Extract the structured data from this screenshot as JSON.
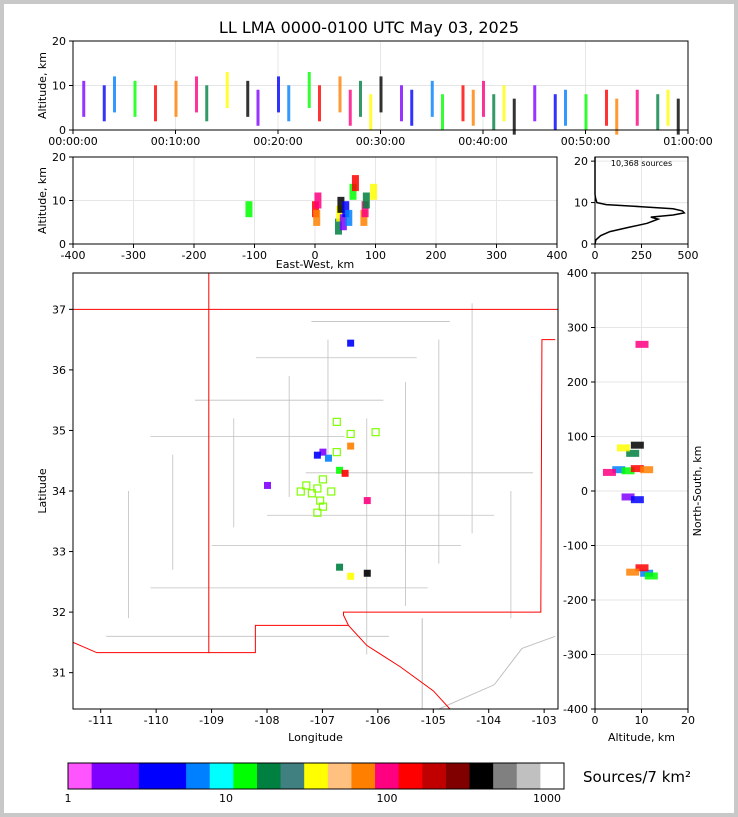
{
  "header": {
    "title": "LL LMA 0000-0100 UTC May 03, 2025"
  },
  "colorbar": {
    "label": "Sources/7 km²",
    "tick_labels": [
      "1",
      "10",
      "100",
      "1000"
    ],
    "colors": [
      "#ff55ff",
      "#8000ff",
      "#8000ff",
      "#0000ff",
      "#0000ff",
      "#0080ff",
      "#00ffff",
      "#00ff00",
      "#008040",
      "#408080",
      "#ffff00",
      "#ffc080",
      "#ff8000",
      "#ff0080",
      "#ff0000",
      "#c00000",
      "#800000",
      "#000000",
      "#808080",
      "#c0c0c0",
      "#ffffff"
    ]
  },
  "colors": {
    "state_border": "#ff0000",
    "county_border": "#c0c0c0",
    "station_marker": "#80ff00"
  },
  "chart_data": [
    {
      "type": "scatter",
      "panel": "altitude-vs-time",
      "xlabel": "",
      "ylabel": "Altitude, km",
      "x_tick_labels": [
        "00:00:00",
        "00:10:00",
        "00:20:00",
        "00:30:00",
        "00:40:00",
        "00:50:00",
        "01:00:00"
      ],
      "y_ticks": [
        0,
        10,
        20
      ],
      "xlim_minutes": [
        0,
        60
      ],
      "ylim": [
        0,
        20
      ],
      "grid": true,
      "sources": [
        [
          1,
          7
        ],
        [
          3,
          6
        ],
        [
          4,
          8
        ],
        [
          6,
          7
        ],
        [
          8,
          6
        ],
        [
          10,
          7
        ],
        [
          12,
          8
        ],
        [
          13,
          6
        ],
        [
          15,
          9
        ],
        [
          17,
          7
        ],
        [
          18,
          5
        ],
        [
          20,
          8
        ],
        [
          21,
          6
        ],
        [
          23,
          9
        ],
        [
          24,
          6
        ],
        [
          26,
          8
        ],
        [
          27,
          5
        ],
        [
          28,
          7
        ],
        [
          29,
          4
        ],
        [
          30,
          8
        ],
        [
          32,
          6
        ],
        [
          33,
          5
        ],
        [
          35,
          7
        ],
        [
          36,
          4
        ],
        [
          38,
          6
        ],
        [
          39,
          5
        ],
        [
          40,
          7
        ],
        [
          41,
          4
        ],
        [
          42,
          6
        ],
        [
          43,
          3
        ],
        [
          45,
          6
        ],
        [
          47,
          4
        ],
        [
          48,
          5
        ],
        [
          50,
          4
        ],
        [
          52,
          5
        ],
        [
          53,
          3
        ],
        [
          55,
          5
        ],
        [
          57,
          4
        ],
        [
          58,
          5
        ],
        [
          59,
          3
        ]
      ]
    },
    {
      "type": "scatter",
      "panel": "altitude-vs-east-west",
      "xlabel": "East-West, km",
      "ylabel": "Altitude, km",
      "x_ticks": [
        -400,
        -300,
        -200,
        -100,
        0,
        100,
        200,
        300,
        400
      ],
      "y_ticks": [
        0,
        10,
        20
      ],
      "xlim": [
        -400,
        400
      ],
      "ylim": [
        0,
        20
      ],
      "grid": true,
      "sources": [
        [
          -110,
          8
        ],
        [
          0,
          8
        ],
        [
          2,
          6
        ],
        [
          4,
          10
        ],
        [
          38,
          4
        ],
        [
          40,
          7
        ],
        [
          42,
          9
        ],
        [
          46,
          5
        ],
        [
          50,
          8
        ],
        [
          55,
          6
        ],
        [
          62,
          12
        ],
        [
          66,
          14
        ],
        [
          80,
          6
        ],
        [
          82,
          8
        ],
        [
          84,
          10
        ],
        [
          96,
          12
        ]
      ]
    },
    {
      "type": "line",
      "panel": "altitude-histogram",
      "annotation": "10,368 sources",
      "x_ticks": [
        0,
        250,
        500
      ],
      "y_ticks": [
        0,
        10,
        20
      ],
      "xlim": [
        0,
        500
      ],
      "ylim": [
        0,
        21
      ],
      "grid": true,
      "points": [
        [
          0,
          0
        ],
        [
          5,
          1
        ],
        [
          30,
          2
        ],
        [
          80,
          3
        ],
        [
          180,
          4
        ],
        [
          280,
          5
        ],
        [
          340,
          6
        ],
        [
          300,
          6.5
        ],
        [
          420,
          7
        ],
        [
          480,
          7.5
        ],
        [
          470,
          8
        ],
        [
          420,
          8.5
        ],
        [
          250,
          9
        ],
        [
          60,
          9.5
        ],
        [
          10,
          10
        ],
        [
          3,
          11
        ],
        [
          0,
          12
        ],
        [
          0,
          21
        ]
      ]
    },
    {
      "type": "scatter",
      "panel": "plan-view-map",
      "xlabel": "Longitude",
      "ylabel": "Latitude",
      "x_ticks": [
        -111,
        -110,
        -109,
        -108,
        -107,
        -106,
        -105,
        -104,
        -103
      ],
      "y_ticks": [
        31,
        32,
        33,
        34,
        35,
        36,
        37
      ],
      "xlim": [
        -111.5,
        -102.75
      ],
      "ylim": [
        30.4,
        37.6
      ],
      "sources": [
        [
          -107.0,
          34.65
        ],
        [
          -107.1,
          34.6
        ],
        [
          -106.9,
          34.55
        ],
        [
          -106.7,
          34.35
        ],
        [
          -106.6,
          34.3
        ],
        [
          -106.5,
          34.75
        ],
        [
          -106.2,
          33.85
        ],
        [
          -106.7,
          32.75
        ],
        [
          -106.5,
          32.6
        ],
        [
          -106.2,
          32.65
        ],
        [
          -108.0,
          34.1
        ],
        [
          -106.5,
          36.45
        ]
      ],
      "stations": [
        [
          -106.75,
          35.15
        ],
        [
          -106.5,
          34.95
        ],
        [
          -106.05,
          34.98
        ],
        [
          -106.75,
          34.65
        ],
        [
          -107.0,
          34.2
        ],
        [
          -107.1,
          34.05
        ],
        [
          -107.3,
          34.1
        ],
        [
          -107.4,
          34.0
        ],
        [
          -107.2,
          33.97
        ],
        [
          -106.85,
          34.0
        ],
        [
          -107.05,
          33.85
        ],
        [
          -107.0,
          33.75
        ],
        [
          -107.1,
          33.65
        ]
      ]
    },
    {
      "type": "scatter",
      "panel": "north-south-vs-altitude",
      "xlabel": "Altitude, km",
      "ylabel": "North-South, km",
      "x_ticks": [
        0,
        10,
        20
      ],
      "y_ticks": [
        -400,
        -300,
        -200,
        -100,
        0,
        100,
        200,
        300,
        400
      ],
      "xlim": [
        0,
        20
      ],
      "ylim": [
        -400,
        400
      ],
      "grid": true,
      "sources": [
        [
          5,
          40
        ],
        [
          7,
          38
        ],
        [
          9,
          42
        ],
        [
          11,
          40
        ],
        [
          3,
          35
        ],
        [
          8,
          70
        ],
        [
          6,
          80
        ],
        [
          9,
          85
        ],
        [
          7,
          -10
        ],
        [
          9,
          -15
        ],
        [
          11,
          -150
        ],
        [
          12,
          -155
        ],
        [
          10,
          -140
        ],
        [
          8,
          -148
        ],
        [
          10,
          270
        ]
      ]
    }
  ]
}
